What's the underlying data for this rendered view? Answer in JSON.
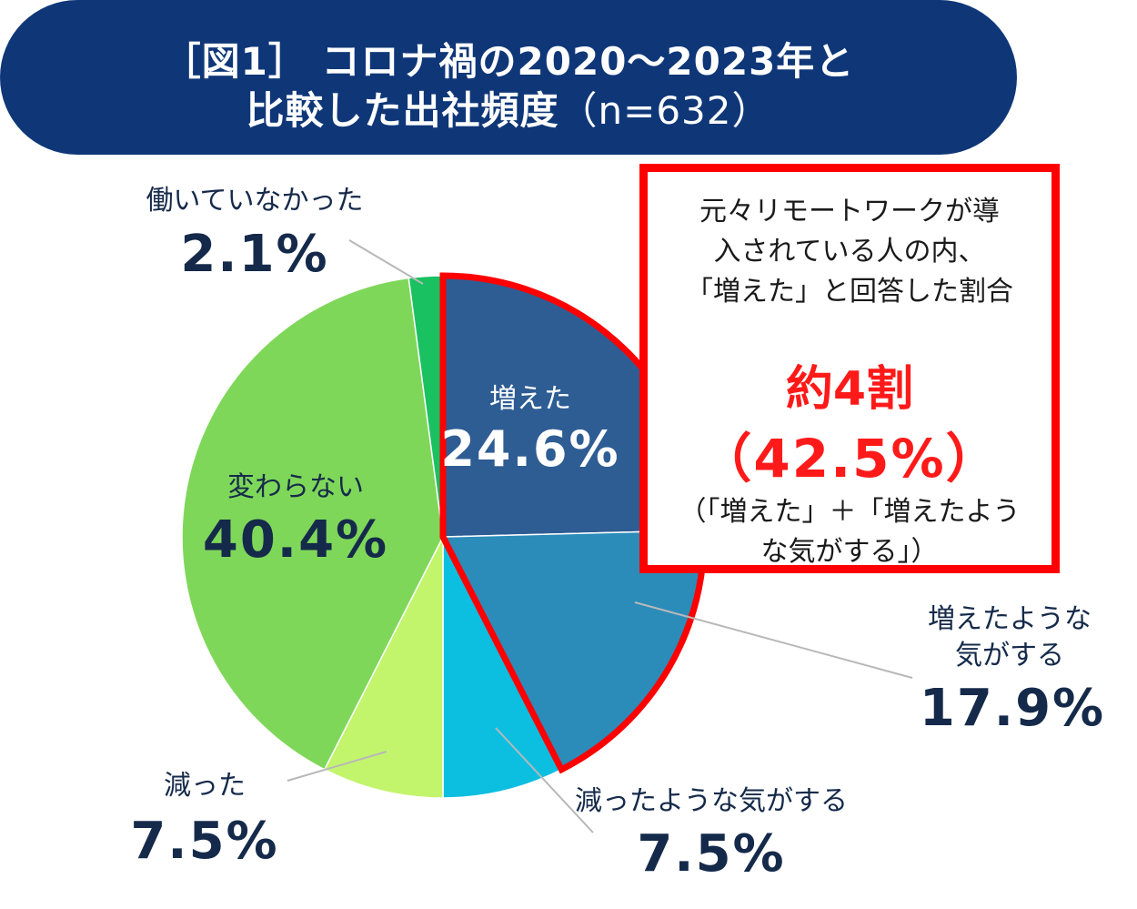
{
  "title": {
    "line1": "［図1］ コロナ禍の2020～2023年と",
    "line2": "比較した出社頻度",
    "n_label": "（n=632）"
  },
  "callout": {
    "desc_line1": "元々リモートワークが導",
    "desc_line2": "入されている人の内、",
    "desc_line3": "「増えた」と回答した割合",
    "headline": "約4割",
    "percent": "（42.5%）",
    "note_line1": "（「増えた」＋「増えたよう",
    "note_line2": "な気がする」）"
  },
  "chart_data": {
    "type": "pie",
    "title": "［図1］ コロナ禍の2020～2023年と比較した出社頻度（n=632）",
    "slices": [
      {
        "label": "増えた",
        "value": 24.6,
        "value_label": "24.6%",
        "color": "#2e5d94"
      },
      {
        "label": "増えたような気がする",
        "label_lines": [
          "増えたような",
          "気がする"
        ],
        "value": 17.9,
        "value_label": "17.9%",
        "color": "#2b8cba"
      },
      {
        "label": "減ったような気がする",
        "value": 7.5,
        "value_label": "7.5%",
        "color": "#0cbfe0"
      },
      {
        "label": "減った",
        "value": 7.5,
        "value_label": "7.5%",
        "color": "#c2f56c"
      },
      {
        "label": "変わらない",
        "value": 40.4,
        "value_label": "40.4%",
        "color": "#7fd75a"
      },
      {
        "label": "働いていなかった",
        "value": 2.1,
        "value_label": "2.1%",
        "color": "#19c160"
      }
    ],
    "highlight": {
      "slices": [
        "増えた",
        "増えたような気がする"
      ],
      "color": "#ff0000"
    },
    "text_color": "#152a4a"
  }
}
